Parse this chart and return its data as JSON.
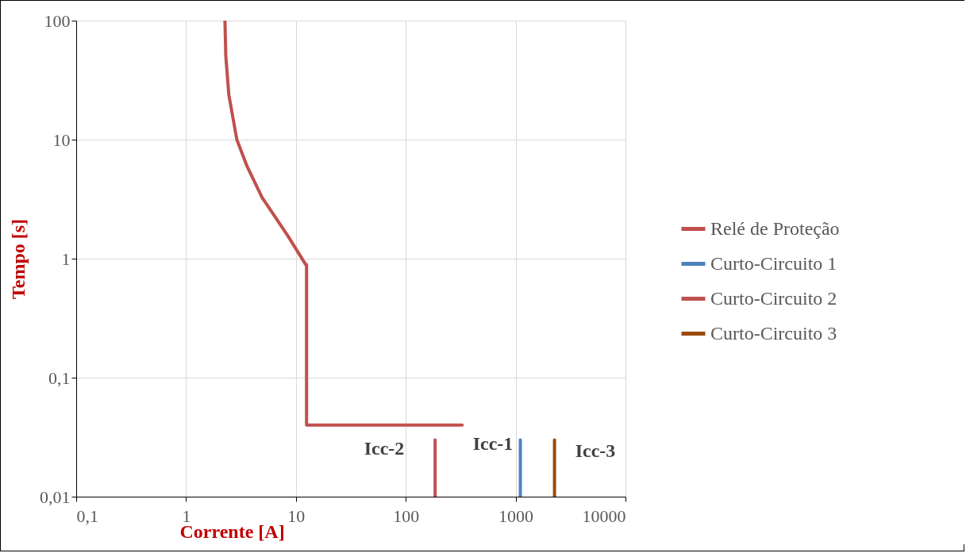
{
  "chart_data": {
    "type": "line",
    "xlabel": "Corrente [A]",
    "ylabel": "Tempo [s]",
    "log": "xy",
    "grid": true,
    "legend": "right",
    "marker": "none",
    "line_style": "solid",
    "xlim": [
      0.1,
      10000
    ],
    "ylim": [
      0.01,
      100
    ],
    "xticks": [
      {
        "value": 0.1,
        "label": "0,1"
      },
      1,
      10,
      100,
      1000,
      10000
    ],
    "yticks": [
      {
        "value": 0.01,
        "label": "0,01"
      },
      {
        "value": 0.1,
        "label": "0,1"
      },
      1,
      10,
      100
    ],
    "series": [
      {
        "name": "Relé de Proteção",
        "color": "#c0504d",
        "x": [
          2.26,
          2.3,
          2.45,
          2.9,
          3.6,
          4.93,
          8.5,
          12.3,
          12.5,
          12.5,
          326
        ],
        "values": [
          100,
          50.6,
          23.9,
          10,
          5.94,
          3.26,
          1.54,
          0.89,
          0.89,
          0.04,
          0.04
        ]
      },
      {
        "name": "Curto-Circuito 1",
        "color": "#4f81bd",
        "x": [
          1104,
          1104
        ],
        "values": [
          0.01,
          0.03
        ]
      },
      {
        "name": "Curto-Circuito 2",
        "color": "#c0504d",
        "x": [
          185,
          185
        ],
        "values": [
          0.01,
          0.03
        ]
      },
      {
        "name": "Curto-Circuito 3",
        "color": "#9c4a0c",
        "x": [
          2260,
          2260
        ],
        "values": [
          0.01,
          0.03
        ]
      }
    ],
    "annotations": [
      "Icc-2",
      "Icc-1",
      "Icc-3"
    ]
  }
}
